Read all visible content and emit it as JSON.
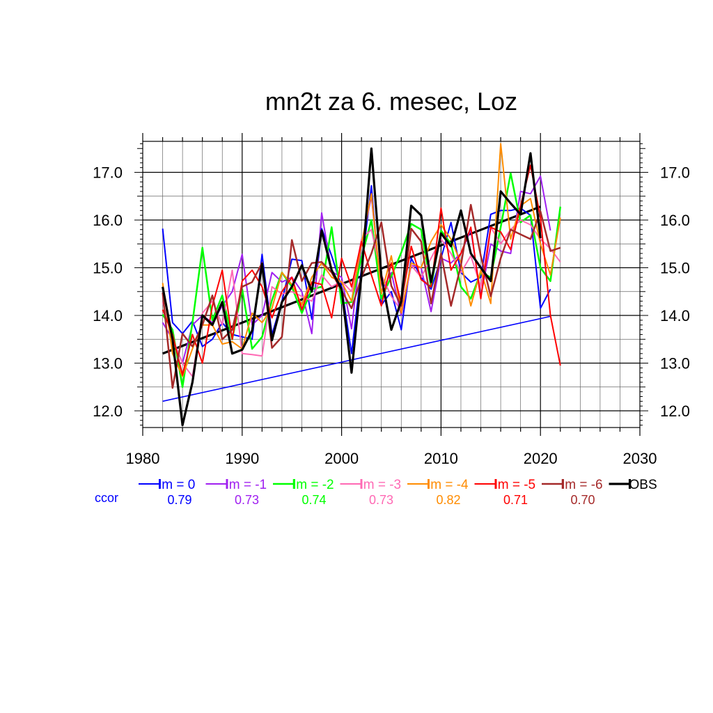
{
  "chart_data": {
    "type": "line",
    "title": "mn2t za 6. mesec, Loz",
    "xlim": [
      1980,
      2030
    ],
    "ylim": [
      11.65,
      17.65
    ],
    "x_ticks": [
      1980,
      1990,
      2000,
      2010,
      2020,
      2030
    ],
    "x_tick_labels": [
      "1980",
      "1990",
      "2000",
      "2010",
      "2020",
      "2030"
    ],
    "y_ticks": [
      12.0,
      13.0,
      14.0,
      15.0,
      16.0,
      17.0
    ],
    "y_tick_labels": [
      "12.0",
      "13.0",
      "14.0",
      "15.0",
      "16.0",
      "17.0"
    ],
    "grid": true,
    "legend_position": "bottom",
    "ccor_label": "ccor",
    "ccor_color": "#0000ff",
    "series": [
      {
        "name": "lm = 0",
        "color": "#0000ff",
        "width": 2,
        "ccor": "0.79",
        "x": [
          1982,
          1983,
          1984,
          1985,
          1986,
          1987,
          1988,
          1989,
          1990,
          1991,
          1992,
          1993,
          1994,
          1995,
          1996,
          1997,
          1998,
          1999,
          2000,
          2001,
          2002,
          2003,
          2004,
          2005,
          2006,
          2007,
          2008,
          2009,
          2010,
          2011,
          2012,
          2013,
          2014,
          2015,
          2016,
          2017,
          2018,
          2019,
          2020,
          2021
        ],
        "values": [
          15.82,
          13.85,
          13.62,
          13.88,
          13.35,
          13.5,
          13.85,
          13.6,
          13.55,
          13.5,
          15.28,
          13.6,
          14.3,
          15.18,
          15.15,
          13.92,
          15.82,
          15.25,
          14.6,
          13.2,
          15.0,
          16.72,
          14.22,
          14.5,
          13.7,
          15.2,
          14.8,
          14.55,
          15.2,
          15.95,
          14.9,
          14.7,
          14.8,
          16.12,
          16.2,
          16.2,
          16.25,
          16.1,
          14.15,
          14.55
        ]
      },
      {
        "name": "lm = -1",
        "color": "#a020f0",
        "width": 2,
        "ccor": "0.73",
        "x": [
          1982,
          1983,
          1984,
          1985,
          1986,
          1987,
          1988,
          1989,
          1990,
          1991,
          1992,
          1993,
          1994,
          1995,
          1996,
          1997,
          1998,
          1999,
          2000,
          2001,
          2002,
          2003,
          2004,
          2005,
          2006,
          2007,
          2008,
          2009,
          2010,
          2011,
          2012,
          2013,
          2014,
          2015,
          2016,
          2017,
          2018,
          2019,
          2020,
          2021
        ],
        "values": [
          13.85,
          13.5,
          13.0,
          13.8,
          14.0,
          13.85,
          14.2,
          14.5,
          15.28,
          13.8,
          14.0,
          14.9,
          14.7,
          14.8,
          14.5,
          13.62,
          16.15,
          14.92,
          14.8,
          13.72,
          15.5,
          16.5,
          14.5,
          14.9,
          14.0,
          15.05,
          15.0,
          14.08,
          15.2,
          15.1,
          15.3,
          15.8,
          14.4,
          15.5,
          15.35,
          15.3,
          16.6,
          16.55,
          16.92,
          15.78
        ]
      },
      {
        "name": "lm = -2",
        "color": "#00ff00",
        "width": 2.5,
        "ccor": "0.74",
        "x": [
          1982,
          1983,
          1984,
          1985,
          1986,
          1987,
          1988,
          1989,
          1990,
          1991,
          1992,
          1993,
          1994,
          1995,
          1996,
          1997,
          1998,
          1999,
          2000,
          2001,
          2002,
          2003,
          2004,
          2005,
          2006,
          2007,
          2008,
          2009,
          2010,
          2011,
          2012,
          2013,
          2014,
          2015,
          2016,
          2017,
          2018,
          2019,
          2020,
          2021,
          2022
        ],
        "values": [
          14.02,
          13.7,
          12.5,
          13.85,
          15.42,
          13.9,
          14.42,
          13.5,
          14.55,
          13.3,
          13.55,
          14.32,
          14.9,
          14.6,
          14.05,
          14.55,
          14.6,
          15.85,
          14.25,
          14.28,
          15.22,
          16.0,
          14.35,
          14.82,
          15.32,
          15.92,
          15.8,
          14.6,
          15.78,
          15.5,
          14.6,
          14.35,
          14.9,
          14.8,
          15.85,
          16.98,
          15.95,
          16.1,
          15.0,
          14.72,
          16.28
        ]
      },
      {
        "name": "lm = -3",
        "color": "#ff69b4",
        "width": 2,
        "ccor": "0.73",
        "x": [
          1982,
          1983,
          1984,
          1985,
          1986,
          1987,
          1988,
          1989,
          1990,
          1991,
          1992,
          1993,
          1994,
          1995,
          1996,
          1997,
          1998,
          1999,
          2000,
          2001,
          2002,
          2003,
          2004,
          2005,
          2006,
          2007,
          2008,
          2009,
          2010,
          2011,
          2012,
          2013,
          2014,
          2015,
          2016,
          2017,
          2018,
          2019,
          2020,
          2021,
          2022
        ],
        "values": [
          14.28,
          13.5,
          13.0,
          12.72,
          14.05,
          14.3,
          13.8,
          14.95,
          13.2,
          13.18,
          13.15,
          14.6,
          14.45,
          14.5,
          14.4,
          14.3,
          14.85,
          14.6,
          14.72,
          14.5,
          15.6,
          15.8,
          14.85,
          14.4,
          14.1,
          15.05,
          14.8,
          15.2,
          15.6,
          15.3,
          14.9,
          15.25,
          14.6,
          15.85,
          15.5,
          15.8,
          16.0,
          15.9,
          15.6,
          15.4,
          15.12
        ]
      },
      {
        "name": "lm = -4",
        "color": "#ff8c00",
        "width": 2,
        "ccor": "0.82",
        "x": [
          1982,
          1983,
          1984,
          1985,
          1986,
          1987,
          1988,
          1989,
          1990,
          1991,
          1992,
          1993,
          1994,
          1995,
          1996,
          1997,
          1998,
          1999,
          2000,
          2001,
          2002,
          2003,
          2004,
          2005,
          2006,
          2007,
          2008,
          2009,
          2010,
          2011,
          2012,
          2013,
          2014,
          2015,
          2016,
          2017,
          2018,
          2019,
          2020,
          2021,
          2022
        ],
        "values": [
          14.68,
          13.2,
          12.72,
          13.3,
          13.8,
          13.8,
          13.4,
          13.45,
          13.3,
          14.05,
          13.85,
          14.15,
          14.9,
          14.65,
          14.22,
          14.8,
          15.1,
          14.8,
          14.7,
          14.3,
          15.5,
          16.55,
          14.45,
          15.25,
          14.05,
          15.1,
          15.0,
          15.55,
          15.9,
          15.6,
          15.1,
          14.2,
          14.95,
          14.25,
          17.6,
          15.6,
          16.3,
          16.45,
          15.5,
          14.85,
          16.05
        ]
      },
      {
        "name": "lm = -5",
        "color": "#ff0000",
        "width": 2,
        "ccor": "0.71",
        "x": [
          1982,
          1983,
          1984,
          1985,
          1986,
          1987,
          1988,
          1989,
          1990,
          1991,
          1992,
          1993,
          1994,
          1995,
          1996,
          1997,
          1998,
          1999,
          2000,
          2001,
          2002,
          2003,
          2004,
          2005,
          2006,
          2007,
          2008,
          2009,
          2010,
          2011,
          2012,
          2013,
          2014,
          2015,
          2016,
          2017,
          2018,
          2019,
          2020,
          2021,
          2022
        ],
        "values": [
          14.12,
          13.6,
          12.75,
          13.6,
          13.0,
          14.2,
          14.95,
          13.5,
          14.72,
          14.95,
          14.6,
          13.95,
          14.5,
          14.8,
          14.12,
          14.7,
          14.65,
          13.95,
          15.2,
          14.6,
          15.55,
          14.85,
          14.2,
          15.1,
          14.25,
          15.45,
          14.75,
          14.6,
          16.25,
          14.95,
          15.3,
          15.85,
          14.35,
          15.85,
          15.75,
          15.38,
          16.3,
          17.15,
          16.05,
          14.0,
          12.95
        ]
      },
      {
        "name": "lm = -6",
        "color": "#a52a2a",
        "width": 2.5,
        "ccor": "0.70",
        "x": [
          1982,
          1983,
          1984,
          1985,
          1986,
          1987,
          1988,
          1989,
          1990,
          1991,
          1992,
          1993,
          1994,
          1995,
          1996,
          1997,
          1998,
          1999,
          2000,
          2001,
          2002,
          2003,
          2004,
          2005,
          2006,
          2007,
          2008,
          2009,
          2010,
          2011,
          2012,
          2013,
          2014,
          2015,
          2016,
          2017,
          2018,
          2019,
          2020,
          2021,
          2022
        ],
        "values": [
          14.48,
          12.48,
          13.62,
          13.35,
          13.8,
          14.42,
          13.5,
          13.7,
          14.6,
          14.7,
          15.1,
          13.32,
          13.55,
          15.58,
          14.72,
          15.1,
          15.12,
          14.9,
          14.52,
          14.15,
          14.8,
          15.3,
          15.95,
          14.62,
          14.2,
          15.82,
          15.55,
          14.25,
          15.3,
          14.2,
          15.05,
          16.32,
          15.25,
          14.4,
          15.2,
          15.8,
          15.7,
          15.6,
          16.18,
          15.35,
          15.42
        ]
      },
      {
        "name": "OBS",
        "color": "#000000",
        "width": 3.2,
        "x": [
          1982,
          1983,
          1984,
          1985,
          1986,
          1987,
          1988,
          1989,
          1990,
          1991,
          1992,
          1993,
          1994,
          1995,
          1996,
          1997,
          1998,
          1999,
          2000,
          2001,
          2002,
          2003,
          2004,
          2005,
          2006,
          2007,
          2008,
          2009,
          2010,
          2011,
          2012,
          2013,
          2014,
          2015,
          2016,
          2017,
          2018,
          2019,
          2020
        ],
        "values": [
          14.6,
          13.5,
          11.7,
          12.6,
          14.0,
          13.8,
          14.28,
          13.2,
          13.28,
          13.68,
          15.08,
          13.48,
          14.28,
          14.6,
          15.05,
          14.5,
          15.78,
          14.95,
          14.55,
          12.8,
          14.85,
          17.5,
          14.82,
          13.7,
          14.3,
          16.3,
          16.1,
          14.7,
          15.72,
          15.45,
          16.2,
          15.3,
          15.0,
          14.72,
          16.6,
          16.35,
          16.12,
          17.4,
          15.62
        ]
      }
    ],
    "trend_lines": [
      {
        "color": "#000000",
        "width": 3.2,
        "x": [
          1982,
          2020
        ],
        "values": [
          13.2,
          16.28
        ]
      },
      {
        "color": "#0000ff",
        "width": 1.6,
        "x": [
          1982,
          2021
        ],
        "values": [
          12.2,
          13.98
        ]
      }
    ]
  }
}
